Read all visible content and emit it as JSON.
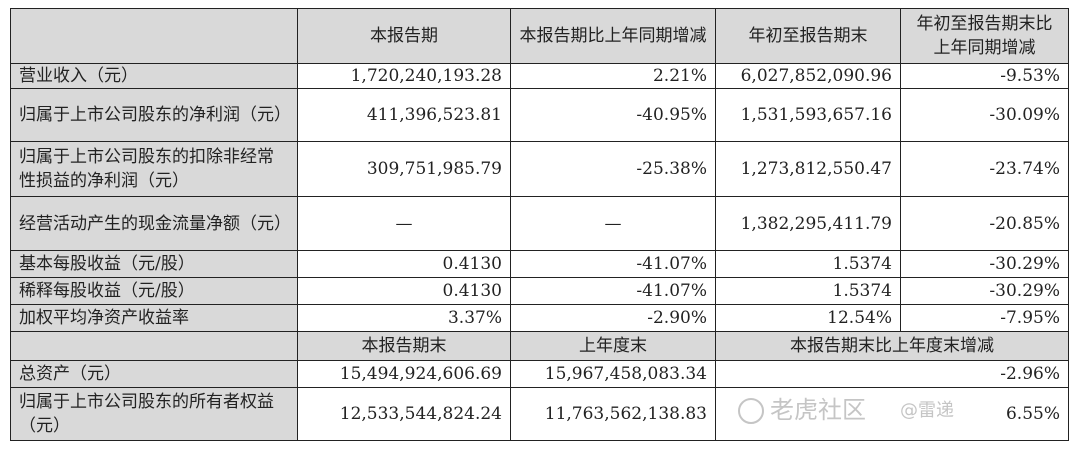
{
  "header": [
    "",
    "本报告期",
    "本报告期比上年同期增减",
    "年初至报告期末",
    "年初至报告期末比上年同期增减"
  ],
  "rows": [
    {
      "label": "营业收入（元）",
      "cells": [
        "1,720,240,193.28",
        "2.21%",
        "6,027,852,090.96",
        "-9.53%"
      ]
    },
    {
      "label": "归属于上市公司股东的净利润（元）",
      "cells": [
        "411,396,523.81",
        "-40.95%",
        "1,531,593,657.16",
        "-30.09%"
      ]
    },
    {
      "label": "归属于上市公司股东的扣除非经常性损益的净利润（元）",
      "cells": [
        "309,751,985.79",
        "-25.38%",
        "1,273,812,550.47",
        "-23.74%"
      ]
    },
    {
      "label": "经营活动产生的现金流量净额（元）",
      "cells": [
        "—",
        "—",
        "1,382,295,411.79",
        "-20.85%"
      ]
    },
    {
      "label": "基本每股收益（元/股）",
      "cells": [
        "0.4130",
        "-41.07%",
        "1.5374",
        "-30.29%"
      ]
    },
    {
      "label": "稀释每股收益（元/股）",
      "cells": [
        "0.4130",
        "-41.07%",
        "1.5374",
        "-30.29%"
      ]
    },
    {
      "label": "加权平均净资产收益率",
      "cells": [
        "3.37%",
        "-2.90%",
        "12.54%",
        "-7.95%"
      ]
    }
  ],
  "header2": [
    "",
    "本报告期末",
    "上年度末",
    "本报告期末比上年度末增减"
  ],
  "rows2": [
    {
      "label": "总资产（元）",
      "cells": [
        "15,494,924,606.69",
        "15,967,458,083.34",
        "-2.96%"
      ]
    },
    {
      "label": "归属于上市公司股东的所有者权益（元）",
      "cells": [
        "12,533,544,824.24",
        "11,763,562,138.83",
        "6.55%"
      ]
    }
  ],
  "watermark": {
    "brand": "老虎社区",
    "author": "@雷递"
  }
}
